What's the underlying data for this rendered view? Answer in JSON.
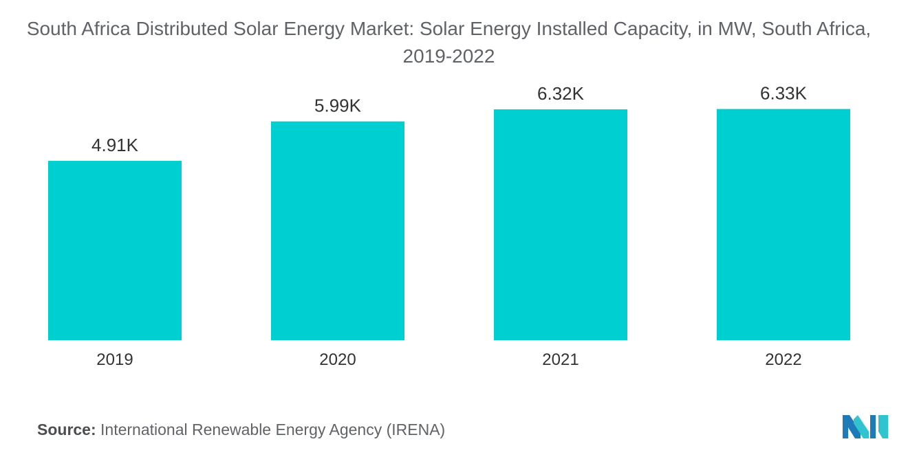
{
  "chart_data": {
    "type": "bar",
    "title": "South Africa Distributed Solar Energy Market: Solar Energy Installed Capacity, in MW, South Africa, 2019-2022",
    "categories": [
      "2019",
      "2020",
      "2021",
      "2022"
    ],
    "values": [
      4910,
      5990,
      6320,
      6330
    ],
    "value_labels": [
      "4.91K",
      "5.99K",
      "6.32K",
      "6.33K"
    ],
    "xlabel": "",
    "ylabel": "",
    "ylim": [
      0,
      7000
    ],
    "grid": false,
    "legend": "none",
    "colors": {
      "bar": "#00cfd1"
    }
  },
  "source": {
    "label": "Source:",
    "text": "International Renewable Energy Agency (IRENA)"
  },
  "logo": {
    "icon": "mordor-intelligence-logo-icon",
    "colors": [
      "#1f7bb8",
      "#2fc4d0"
    ]
  }
}
